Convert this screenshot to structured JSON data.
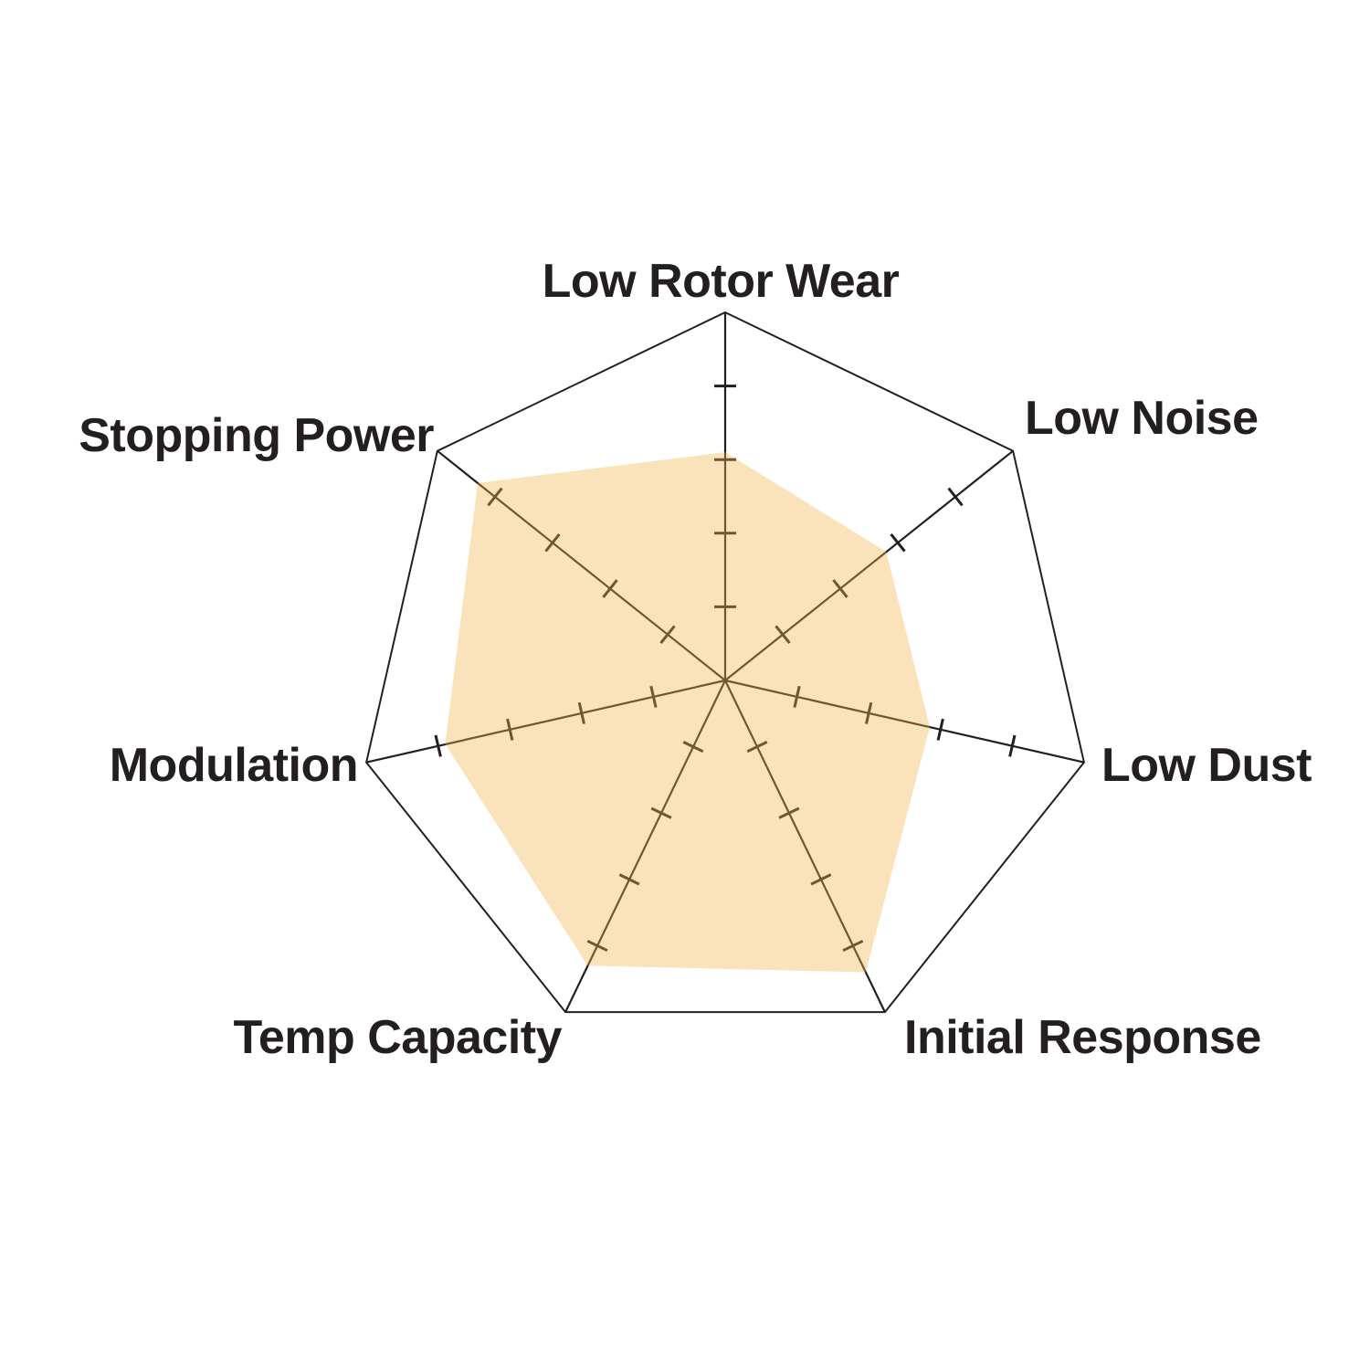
{
  "chart_data": {
    "type": "radar",
    "categories": [
      "Low Rotor Wear",
      "Low Noise",
      "Low Dust",
      "Initial Response",
      "Temp Capacity",
      "Modulation",
      "Stopping Power"
    ],
    "values": [
      3.1,
      2.8,
      2.85,
      4.4,
      4.3,
      3.9,
      4.3
    ],
    "scale": {
      "min": 0,
      "max": 5,
      "tick_interval": 1,
      "ticks_shown": [
        1,
        2,
        3,
        4
      ]
    },
    "title": "",
    "legend": false,
    "grid": "single-outer-polygon",
    "colors": {
      "fill": "rgba(242,179,73,0.38)",
      "fill_over_white_appears": "#fae2ba",
      "axis": "#231f20",
      "label": "#231f20"
    }
  }
}
